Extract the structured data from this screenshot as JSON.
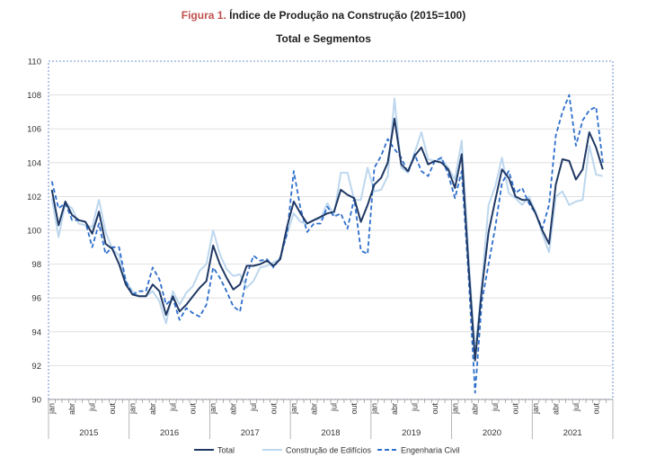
{
  "header": {
    "figure_label": "Figura 1.",
    "title": "Índice de Produção na Construção (2015=100)",
    "subtitle": "Total e Segmentos"
  },
  "chart_data": {
    "type": "line",
    "title": "Índice de Produção na Construção (2015=100)",
    "subtitle": "Total e Segmentos",
    "ylim": [
      90,
      110
    ],
    "yticks": [
      90,
      92,
      94,
      96,
      98,
      100,
      102,
      104,
      106,
      108,
      110
    ],
    "grid": true,
    "legend_position": "bottom",
    "month_tick_labels": [
      "jan",
      "abr",
      "jul",
      "out"
    ],
    "years": [
      "2015",
      "2016",
      "2017",
      "2018",
      "2019",
      "2020",
      "2021"
    ],
    "series": [
      {
        "name": "Total",
        "color": "#1f3864",
        "style": "solid",
        "values": [
          102.4,
          100.3,
          101.7,
          100.9,
          100.6,
          100.5,
          99.8,
          101.1,
          99.2,
          98.9,
          98.0,
          96.8,
          96.2,
          96.1,
          96.1,
          96.8,
          96.4,
          95.0,
          96.1,
          95.2,
          95.6,
          96.1,
          96.6,
          97.0,
          99.1,
          98.0,
          97.2,
          96.5,
          96.8,
          97.9,
          97.9,
          98.0,
          98.2,
          97.9,
          98.3,
          100.2,
          101.7,
          101.0,
          100.4,
          100.6,
          100.8,
          101.0,
          101.1,
          102.4,
          102.1,
          101.9,
          100.5,
          101.5,
          102.7,
          103.1,
          104.0,
          106.6,
          103.9,
          103.5,
          104.4,
          104.9,
          103.9,
          104.1,
          104.0,
          103.6,
          102.5,
          104.5,
          98.0,
          92.3,
          96.5,
          99.9,
          101.8,
          103.6,
          103.1,
          102.0,
          101.8,
          101.8,
          101.0,
          100.0,
          99.2,
          102.7,
          104.2,
          104.1,
          103.0,
          103.6,
          105.8,
          104.9,
          103.6
        ]
      },
      {
        "name": "Construção de Edifícios",
        "color": "#bdd7ee",
        "style": "solid",
        "values": [
          101.9,
          99.6,
          101.6,
          101.3,
          100.4,
          100.3,
          100.2,
          101.8,
          99.9,
          98.9,
          98.5,
          97.0,
          96.4,
          96.1,
          96.1,
          96.4,
          95.8,
          94.5,
          96.4,
          95.6,
          96.3,
          96.7,
          97.6,
          98.0,
          100.0,
          98.6,
          97.7,
          97.3,
          97.4,
          96.6,
          97.0,
          97.8,
          97.9,
          98.1,
          98.3,
          99.8,
          101.0,
          100.5,
          100.4,
          100.6,
          100.7,
          101.6,
          100.9,
          103.4,
          103.4,
          101.8,
          101.8,
          103.7,
          102.3,
          102.4,
          103.2,
          107.8,
          103.7,
          103.4,
          104.6,
          105.8,
          104.2,
          104.1,
          104.2,
          103.7,
          103.0,
          105.3,
          98.6,
          92.8,
          96.8,
          101.5,
          102.6,
          104.3,
          102.2,
          101.9,
          101.5,
          102.0,
          101.1,
          99.8,
          98.7,
          102.0,
          102.3,
          101.5,
          101.7,
          101.8,
          105.0,
          103.3,
          103.2
        ]
      },
      {
        "name": "Engenharia Civil",
        "color": "#2e6fcc",
        "style": "dashed",
        "values": [
          102.9,
          101.3,
          101.6,
          100.6,
          100.6,
          100.5,
          99.0,
          100.4,
          98.6,
          99.0,
          99.0,
          97.0,
          96.2,
          96.4,
          96.4,
          97.8,
          97.1,
          95.6,
          96.0,
          94.7,
          95.4,
          95.1,
          94.9,
          95.6,
          97.8,
          97.2,
          96.4,
          95.5,
          95.2,
          97.3,
          98.5,
          98.2,
          98.3,
          97.8,
          98.4,
          99.8,
          103.5,
          101.3,
          99.9,
          100.4,
          100.4,
          101.4,
          100.8,
          101.0,
          100.1,
          101.9,
          98.8,
          98.6,
          103.7,
          104.4,
          105.4,
          104.8,
          104.3,
          103.4,
          104.5,
          103.5,
          103.2,
          104.1,
          104.3,
          103.3,
          101.9,
          103.5,
          97.4,
          90.4,
          95.8,
          98.0,
          100.2,
          102.8,
          103.5,
          102.2,
          102.5,
          101.6,
          101.0,
          100.1,
          101.5,
          105.6,
          107.0,
          108.0,
          105.0,
          106.5,
          107.1,
          107.3,
          104.0
        ]
      }
    ]
  }
}
